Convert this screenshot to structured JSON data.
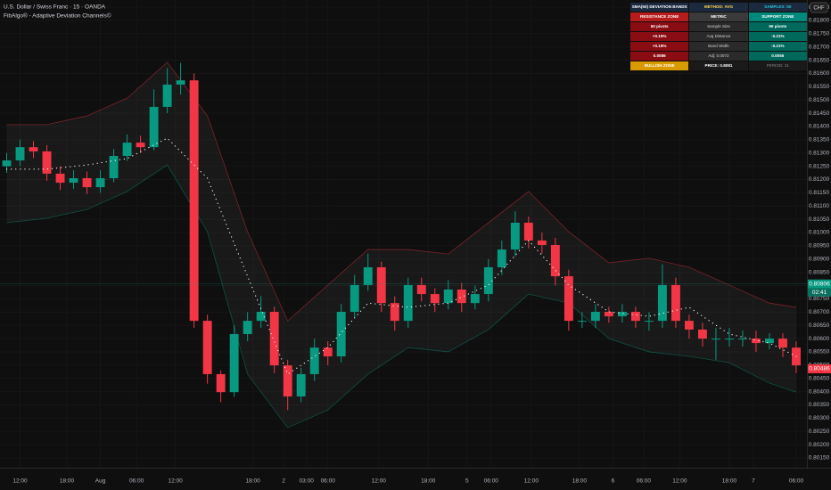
{
  "chart_data": {
    "type": "candlestick",
    "title": "U.S. Dollar / Swiss Franc · 15 · OANDA",
    "subtitle": "FibAlgo® - Adaptive Deviation Channels©",
    "currency": "CHF",
    "up_color": "#089981",
    "down_color": "#f23645",
    "open": [
      0.8125,
      0.81272,
      0.81322,
      0.81306,
      0.81222,
      0.81188,
      0.81205,
      0.81171,
      0.81205,
      0.81289,
      0.81339,
      0.81322,
      0.81474,
      0.81558,
      0.81574,
      0.80667,
      0.80466,
      0.80398,
      0.80617,
      0.80667,
      0.80701,
      0.80499,
      0.80382,
      0.80466,
      0.80566,
      0.80533,
      0.80701,
      0.80802,
      0.80869,
      0.80734,
      0.80667,
      0.80802,
      0.80768,
      0.80734,
      0.80785,
      0.80734,
      0.80768,
      0.80869,
      0.80936,
      0.81037,
      0.8097,
      0.80953,
      0.80835,
      0.80667,
      0.80667,
      0.80701,
      0.80684,
      0.80701,
      0.80667,
      0.80667,
      0.80802,
      0.80667,
      0.80634,
      0.806,
      0.806,
      0.806,
      0.806,
      0.80583,
      0.806,
      0.80566
    ],
    "high": [
      0.813,
      0.8135,
      0.81345,
      0.8133,
      0.8125,
      0.81235,
      0.8123,
      0.81235,
      0.81315,
      0.8137,
      0.81365,
      0.8154,
      0.8162,
      0.8164,
      0.816,
      0.8069,
      0.8048,
      0.8065,
      0.807,
      0.8076,
      0.8072,
      0.8052,
      0.8049,
      0.806,
      0.8059,
      0.8073,
      0.8084,
      0.8092,
      0.8089,
      0.8076,
      0.8083,
      0.8083,
      0.8079,
      0.8082,
      0.8081,
      0.808,
      0.809,
      0.8097,
      0.8108,
      0.8106,
      0.81,
      0.8098,
      0.8086,
      0.807,
      0.8073,
      0.8072,
      0.8073,
      0.8072,
      0.807,
      0.8088,
      0.8083,
      0.8069,
      0.8066,
      0.8064,
      0.8064,
      0.8063,
      0.8063,
      0.8062,
      0.8062,
      0.8059
    ],
    "low": [
      0.81225,
      0.8125,
      0.8128,
      0.81195,
      0.8116,
      0.81165,
      0.81145,
      0.8115,
      0.8119,
      0.8127,
      0.813,
      0.8131,
      0.8145,
      0.8152,
      0.8064,
      0.8043,
      0.8036,
      0.8038,
      0.8059,
      0.8064,
      0.8047,
      0.8033,
      0.8036,
      0.8044,
      0.805,
      0.8051,
      0.8068,
      0.8078,
      0.807,
      0.8063,
      0.8064,
      0.8074,
      0.807,
      0.8071,
      0.807,
      0.8071,
      0.8074,
      0.8084,
      0.8091,
      0.8094,
      0.8092,
      0.808,
      0.8063,
      0.8064,
      0.8064,
      0.8066,
      0.8066,
      0.8064,
      0.8063,
      0.8064,
      0.8064,
      0.806,
      0.8057,
      0.8052,
      0.8057,
      0.8057,
      0.8055,
      0.8056,
      0.8053,
      0.8047
    ],
    "close": [
      0.81272,
      0.81322,
      0.81306,
      0.81222,
      0.81188,
      0.81205,
      0.81171,
      0.81205,
      0.81289,
      0.81339,
      0.81322,
      0.81474,
      0.81558,
      0.81574,
      0.80667,
      0.80466,
      0.80398,
      0.80617,
      0.80667,
      0.80701,
      0.80499,
      0.80382,
      0.80466,
      0.80566,
      0.80533,
      0.80701,
      0.80802,
      0.80869,
      0.80734,
      0.80667,
      0.80802,
      0.80768,
      0.80734,
      0.80785,
      0.80734,
      0.80768,
      0.80869,
      0.80936,
      0.81037,
      0.8097,
      0.80953,
      0.80835,
      0.80667,
      0.80667,
      0.80701,
      0.80684,
      0.80701,
      0.80667,
      0.80667,
      0.80802,
      0.80667,
      0.80634,
      0.806,
      0.806,
      0.806,
      0.806,
      0.80583,
      0.806,
      0.80566,
      0.80499
    ],
    "bands": {
      "x": [
        0,
        3,
        6,
        9,
        12,
        15,
        18,
        21,
        24,
        27,
        30,
        33,
        36,
        39,
        42,
        45,
        48,
        51,
        54,
        57,
        59
      ],
      "upper": [
        0.81407,
        0.81407,
        0.8144,
        0.81507,
        0.81642,
        0.8144,
        0.81003,
        0.80667,
        0.80802,
        0.80936,
        0.80936,
        0.80919,
        0.81037,
        0.81155,
        0.81003,
        0.80886,
        0.80903,
        0.80869,
        0.80802,
        0.80734,
        0.80718
      ],
      "basis": [
        0.81239,
        0.81239,
        0.81255,
        0.81279,
        0.81356,
        0.81205,
        0.80835,
        0.80466,
        0.80566,
        0.80734,
        0.80718,
        0.80734,
        0.80802,
        0.8097,
        0.80802,
        0.80701,
        0.80684,
        0.80718,
        0.80617,
        0.80583,
        0.80533
      ],
      "lower": [
        0.81037,
        0.81054,
        0.81087,
        0.81155,
        0.81255,
        0.81003,
        0.80466,
        0.80264,
        0.80331,
        0.80466,
        0.80566,
        0.8055,
        0.80634,
        0.80768,
        0.80734,
        0.806,
        0.8055,
        0.80533,
        0.80509,
        0.80432,
        0.80398
      ],
      "upper_color": "#f23645",
      "lower_color": "#089981",
      "basis_color": "#ffffff"
    },
    "xlim": [
      -0.5,
      59.8
    ],
    "ylim": [
      0.80113,
      0.81877
    ],
    "xticks": [
      {
        "value": 1,
        "label": "12:00"
      },
      {
        "value": 4.5,
        "label": "18:00"
      },
      {
        "value": 7,
        "label": "Aug"
      },
      {
        "value": 9.7,
        "label": "06:00"
      },
      {
        "value": 12.6,
        "label": "12:00"
      },
      {
        "value": 18.4,
        "label": "18:00"
      },
      {
        "value": 20.7,
        "label": "2"
      },
      {
        "value": 22.4,
        "label": "03:00"
      },
      {
        "value": 24,
        "label": "06:00"
      },
      {
        "value": 27.8,
        "label": "12:00"
      },
      {
        "value": 31.5,
        "label": "18:00"
      },
      {
        "value": 34.4,
        "label": "5"
      },
      {
        "value": 36.2,
        "label": "06:00"
      },
      {
        "value": 39.2,
        "label": "12:00"
      },
      {
        "value": 42.8,
        "label": "18:00"
      },
      {
        "value": 45.3,
        "label": "6"
      },
      {
        "value": 47.6,
        "label": "06:00"
      },
      {
        "value": 50.3,
        "label": "12:00"
      },
      {
        "value": 54,
        "label": "18:00"
      },
      {
        "value": 55.8,
        "label": "7"
      },
      {
        "value": 59,
        "label": "06:00"
      }
    ],
    "yticks": [
      {
        "value": 0.8185,
        "label": "0.81850"
      },
      {
        "value": 0.818,
        "label": "0.81800"
      },
      {
        "value": 0.8175,
        "label": "0.81750"
      },
      {
        "value": 0.817,
        "label": "0.81700"
      },
      {
        "value": 0.8165,
        "label": "0.81650"
      },
      {
        "value": 0.816,
        "label": "0.81600"
      },
      {
        "value": 0.8155,
        "label": "0.81550"
      },
      {
        "value": 0.815,
        "label": "0.81500"
      },
      {
        "value": 0.8145,
        "label": "0.81450"
      },
      {
        "value": 0.814,
        "label": "0.81400"
      },
      {
        "value": 0.8135,
        "label": "0.81350"
      },
      {
        "value": 0.813,
        "label": "0.81300"
      },
      {
        "value": 0.8125,
        "label": "0.81250"
      },
      {
        "value": 0.812,
        "label": "0.81200"
      },
      {
        "value": 0.8115,
        "label": "0.81150"
      },
      {
        "value": 0.811,
        "label": "0.81100"
      },
      {
        "value": 0.8105,
        "label": "0.81050"
      },
      {
        "value": 0.81,
        "label": "0.81000"
      },
      {
        "value": 0.8095,
        "label": "0.80950"
      },
      {
        "value": 0.809,
        "label": "0.80900"
      },
      {
        "value": 0.8085,
        "label": "0.80850"
      },
      {
        "value": 0.808,
        "label": "0.80800"
      },
      {
        "value": 0.8075,
        "label": "0.80750"
      },
      {
        "value": 0.807,
        "label": "0.80700"
      },
      {
        "value": 0.8065,
        "label": "0.80650"
      },
      {
        "value": 0.806,
        "label": "0.80600"
      },
      {
        "value": 0.8055,
        "label": "0.80550"
      },
      {
        "value": 0.805,
        "label": "0.80500"
      },
      {
        "value": 0.8045,
        "label": "0.80450"
      },
      {
        "value": 0.804,
        "label": "0.80400"
      },
      {
        "value": 0.8035,
        "label": "0.80350"
      },
      {
        "value": 0.803,
        "label": "0.80300"
      },
      {
        "value": 0.8025,
        "label": "0.80250"
      },
      {
        "value": 0.802,
        "label": "0.80200"
      },
      {
        "value": 0.8015,
        "label": "0.80150"
      }
    ],
    "price_tags": [
      {
        "value": 0.80806,
        "color": "#089981"
      },
      {
        "value": 0.80486,
        "color": "#f23645"
      }
    ],
    "countdown": "02:41"
  },
  "panel": {
    "header": [
      "SMA(50) DEVIATION BANDS",
      "METHOD: AVG",
      "SAMPLES: 50"
    ],
    "rows": [
      [
        "RESISTANCE ZONE",
        "METRIC",
        "SUPPORT ZONE"
      ],
      [
        "50 pivots",
        "Sample Size",
        "50 pivots"
      ],
      [
        "+0.19%",
        "Avg Distance",
        "-0.21%"
      ],
      [
        "+0.18%",
        "Band Width",
        "-0.21%"
      ],
      [
        "0.0086",
        "Adj: 0.0072",
        "0.0055"
      ],
      [
        "BULLISH ZONE",
        "PRICE: 0.8081",
        "PERIOD: 21"
      ]
    ]
  }
}
